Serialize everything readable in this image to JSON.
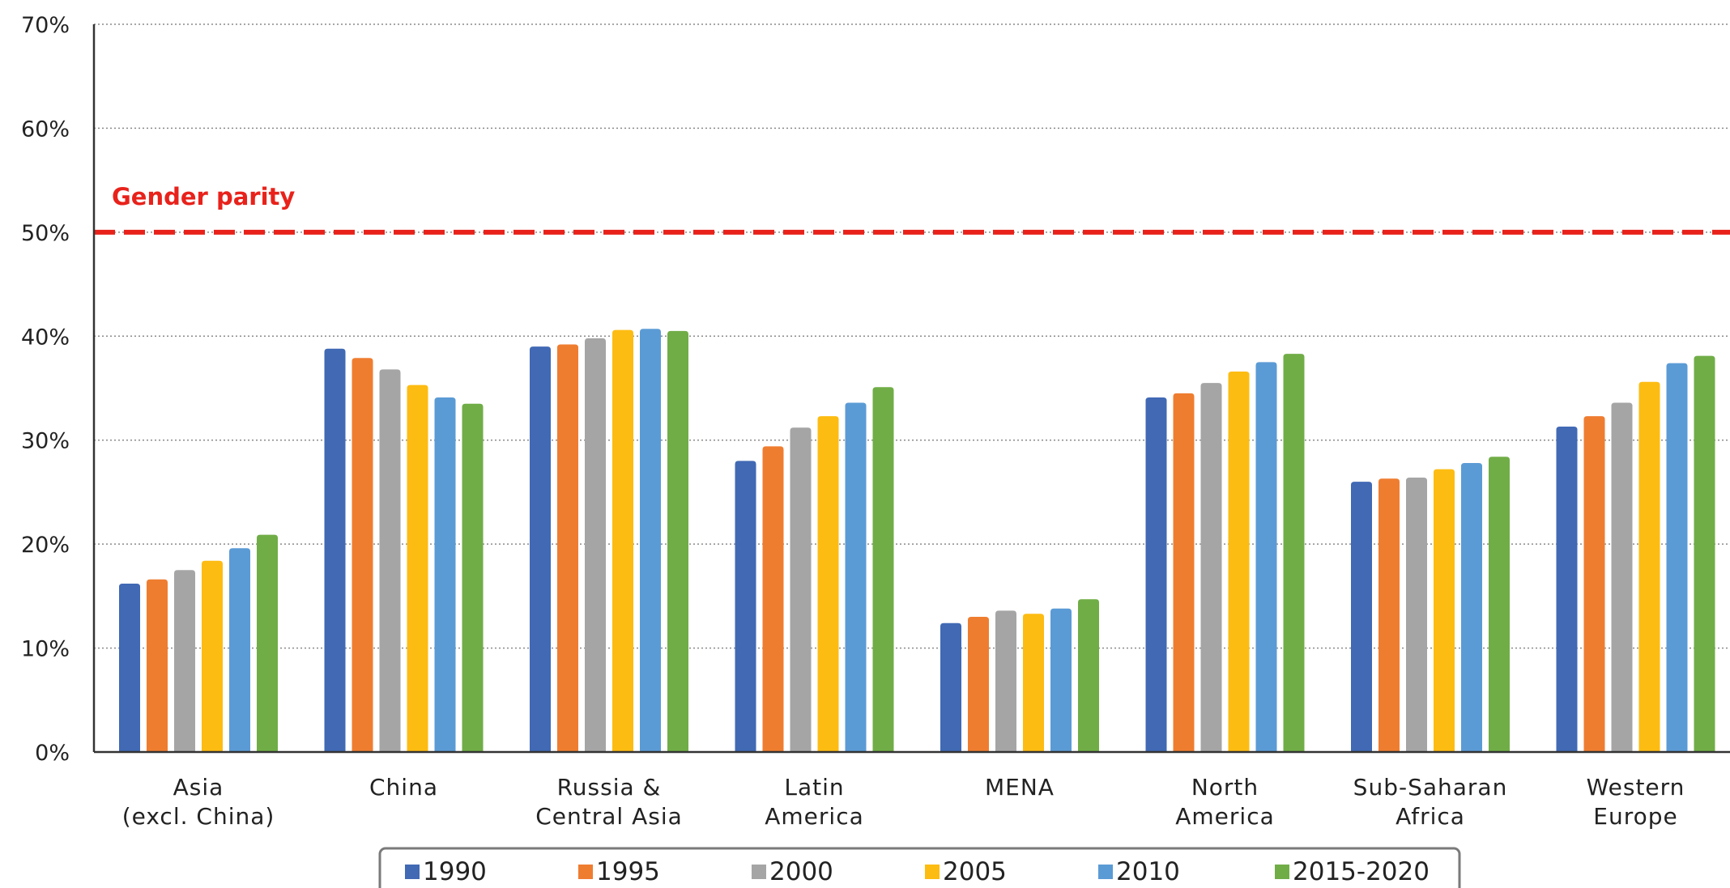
{
  "chart_data": {
    "type": "bar",
    "title": "",
    "xlabel": "",
    "ylabel": "",
    "ylim": [
      0,
      70
    ],
    "y_ticks": [
      "0%",
      "10%",
      "20%",
      "30%",
      "40%",
      "50%",
      "60%",
      "70%"
    ],
    "grid": true,
    "legend_position": "bottom",
    "categories": [
      [
        "Asia",
        "(excl. China)"
      ],
      [
        "China"
      ],
      [
        "Russia &",
        "Central Asia"
      ],
      [
        "Latin",
        "America"
      ],
      [
        "MENA"
      ],
      [
        "North",
        "America"
      ],
      [
        "Sub-Saharan",
        "Africa"
      ],
      [
        "Western",
        "Europe"
      ]
    ],
    "series": [
      {
        "name": "1990",
        "color": "#4169b4",
        "values": [
          16.2,
          38.8,
          39.0,
          28.0,
          12.4,
          34.1,
          26.0,
          31.3
        ]
      },
      {
        "name": "1995",
        "color": "#ef7d30",
        "values": [
          16.6,
          37.9,
          39.2,
          29.4,
          13.0,
          34.5,
          26.3,
          32.3
        ]
      },
      {
        "name": "2000",
        "color": "#a5a5a5",
        "values": [
          17.5,
          36.8,
          39.8,
          31.2,
          13.6,
          35.5,
          26.4,
          33.6
        ]
      },
      {
        "name": "2005",
        "color": "#fdbc12",
        "values": [
          18.4,
          35.3,
          40.6,
          32.3,
          13.3,
          36.6,
          27.2,
          35.6
        ]
      },
      {
        "name": "2010",
        "color": "#5b9bd5",
        "values": [
          19.6,
          34.1,
          40.7,
          33.6,
          13.8,
          37.5,
          27.8,
          37.4
        ]
      },
      {
        "name": "2015-2020",
        "color": "#70ad47",
        "values": [
          20.9,
          33.5,
          40.5,
          35.1,
          14.7,
          38.3,
          28.4,
          38.1
        ]
      }
    ],
    "reference_line": {
      "value": 50,
      "label": "Gender parity",
      "color": "#e8221b"
    }
  }
}
